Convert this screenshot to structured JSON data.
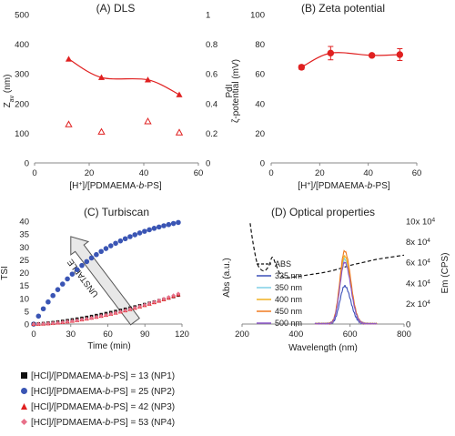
{
  "colors": {
    "red": "#e02020",
    "blue": "#3a55b4",
    "black": "#111111",
    "pink": "#e8708a",
    "violet": "#3b4fb8",
    "lightblue": "#7fcfe6",
    "amber": "#f0b020",
    "orange": "#f07a20",
    "purple": "#8a55c8",
    "arrow_fill": "#e8e8e8"
  },
  "legend_bottom": [
    {
      "pre": "[HCl]/[PDMAEMA-",
      "italic": "b",
      "post": "-PS] = 13 (NP1)",
      "marker": "square",
      "color": "#111111"
    },
    {
      "pre": "[HCl]/[PDMAEMA-",
      "italic": "b",
      "post": "-PS] = 25 (NP2)",
      "marker": "circle",
      "color": "#3a55b4"
    },
    {
      "pre": "[HCl]/[PDMAEMA-",
      "italic": "b",
      "post": "-PS] = 42 (NP3)",
      "marker": "triangle",
      "color": "#e02020"
    },
    {
      "pre": "[HCl]/[PDMAEMA-",
      "italic": "b",
      "post": "-PS] = 53 (NP4)",
      "marker": "diamond",
      "color": "#e8708a"
    }
  ],
  "chart_data": [
    {
      "panel": "A",
      "type": "scatter",
      "title": "(A) DLS",
      "xlabel": "[H⁺]/[PDMAEMA-b-PS]",
      "ylabel": "Z_av (nm)",
      "y2label": "PdI",
      "xlim": [
        0,
        60
      ],
      "xticks": [
        0,
        20,
        40,
        60
      ],
      "ylim": [
        0,
        500
      ],
      "yticks": [
        0,
        100,
        200,
        300,
        400,
        500
      ],
      "y2lim": [
        0,
        1
      ],
      "y2ticks": [
        "0",
        "0.2",
        "0.4",
        "0.6",
        "0.8",
        "1"
      ],
      "series": [
        {
          "name": "Zav",
          "marker": "filled-triangle",
          "color": "#e02020",
          "line": "smooth",
          "x": [
            12.5,
            24.5,
            41.5,
            53
          ],
          "y": [
            350,
            288,
            280,
            230
          ]
        },
        {
          "name": "PdI",
          "marker": "open-triangle",
          "color": "#e02020",
          "axis": "y2",
          "x": [
            12.5,
            24.5,
            41.5,
            53
          ],
          "y": [
            0.26,
            0.21,
            0.28,
            0.205
          ]
        }
      ]
    },
    {
      "panel": "B",
      "type": "scatter",
      "title": "(B) Zeta potential",
      "xlabel": "[H⁺]/[PDMAEMA-b-PS]",
      "ylabel": "ζ-potential (mV)",
      "xlim": [
        0,
        60
      ],
      "xticks": [
        0,
        20,
        40,
        60
      ],
      "ylim": [
        0,
        100
      ],
      "yticks": [
        0,
        20,
        40,
        60,
        80,
        100
      ],
      "series": [
        {
          "name": "zeta",
          "marker": "circle",
          "color": "#e02020",
          "line": "smooth",
          "x": [
            12.5,
            24.5,
            41.5,
            53
          ],
          "y": [
            64.5,
            74,
            72.5,
            73
          ],
          "err": [
            1.5,
            4.5,
            1,
            4
          ]
        }
      ]
    },
    {
      "panel": "C",
      "type": "scatter",
      "title": "(C) Turbiscan",
      "xlabel": "Time (min)",
      "ylabel": "TSI",
      "xlim": [
        0,
        120
      ],
      "xticks": [
        0,
        30,
        60,
        90,
        120
      ],
      "ylim": [
        0,
        40
      ],
      "yticks": [
        0,
        5,
        10,
        15,
        20,
        25,
        30,
        35,
        40
      ],
      "annotation": "UNSTABLE",
      "arrow": {
        "from": [
          82,
          1
        ],
        "to": [
          30,
          34
        ]
      },
      "series": [
        {
          "name": "NP1",
          "marker": "square",
          "color": "#111111",
          "curve": "np1"
        },
        {
          "name": "NP2",
          "marker": "circle",
          "color": "#3a55b4",
          "curve": "np2"
        },
        {
          "name": "NP3",
          "marker": "triangle",
          "color": "#e02020",
          "curve": "np3"
        },
        {
          "name": "NP4",
          "marker": "diamond",
          "color": "#e8708a",
          "curve": "np4"
        }
      ]
    },
    {
      "panel": "D",
      "type": "line",
      "title": "(D) Optical properties",
      "xlabel": "Wavelength (nm)",
      "ylabel": "Abs (a.u.)",
      "y2label": "Em (CPS)",
      "xlim": [
        200,
        800
      ],
      "xticks": [
        200,
        400,
        600,
        800
      ],
      "y2lim": [
        0,
        100000
      ],
      "y2ticks": [
        "0",
        "2x 10⁴",
        "4x 10⁴",
        "6x 10⁴",
        "8x 10⁴",
        "10x 10⁴"
      ],
      "legend": [
        "ABS",
        "325 nm",
        "350 nm",
        "400 nm",
        "450 nm",
        "500 nm"
      ],
      "abs": {
        "name": "ABS",
        "dash": true,
        "color": "#111111",
        "x": [
          230,
          240,
          255,
          270,
          285,
          300,
          312,
          325,
          340,
          360,
          400,
          450,
          500,
          550,
          600,
          650,
          700,
          750,
          800
        ],
        "y": [
          98,
          80,
          60,
          53,
          52,
          57,
          65,
          58,
          49,
          45,
          46,
          48,
          50,
          53,
          57,
          60,
          63,
          65,
          67
        ]
      },
      "emission": [
        {
          "name": "325 nm",
          "color": "#3b4fb8",
          "peak": 37000,
          "xmax": 650
        },
        {
          "name": "350 nm",
          "color": "#7fcfe6",
          "peak": 63000,
          "xmax": 700
        },
        {
          "name": "400 nm",
          "color": "#f0b020",
          "peak": 66000,
          "xmax": 700
        },
        {
          "name": "450 nm",
          "color": "#f07a20",
          "peak": 71000,
          "xmax": 700
        },
        {
          "name": "500 nm",
          "color": "#8a55c8",
          "peak": 60000,
          "xmax": 700
        }
      ]
    }
  ]
}
